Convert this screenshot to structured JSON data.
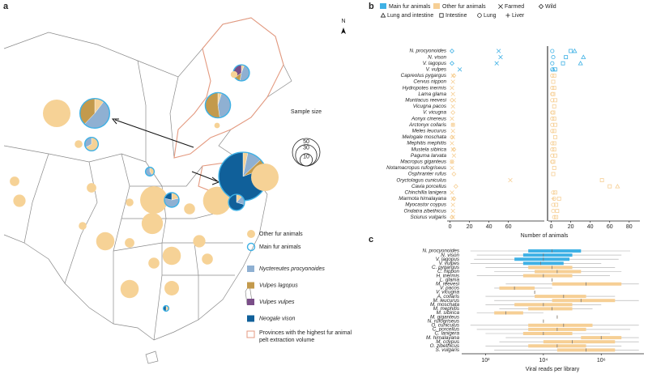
{
  "chart_data": [
    {
      "type": "pie-map",
      "panel_label": "a",
      "compass": "N",
      "size_title": "Sample size",
      "size_ticks": [
        10,
        30,
        50
      ],
      "main_label": "Main fur animals",
      "main_color": "#3fb1e5",
      "province_label": "Provinces with the highest fur animal pelt extraction volume",
      "province_color": "#e49a80",
      "series": [
        {
          "name": "Other fur animals",
          "color": "#f6d296"
        },
        {
          "name": "Nyctereutes procyonoides",
          "color": "#8fb0d2"
        },
        {
          "name": "Vulpes lagopus",
          "color": "#c39a4c"
        },
        {
          "name": "Vulpes vulpes",
          "color": "#7a4e88"
        },
        {
          "name": "Neogale vison",
          "color": "#10609a"
        }
      ],
      "pies": [
        [
          50,
          0,
          0,
          0,
          0
        ],
        [
          6,
          30,
          22,
          0,
          0
        ],
        [
          4,
          0,
          0,
          0,
          0
        ],
        [
          8,
          4,
          0,
          0,
          0
        ],
        [
          2,
          18,
          22,
          0,
          0
        ],
        [
          1,
          8,
          2,
          6,
          0
        ],
        [
          3,
          0,
          0,
          0,
          0
        ],
        [
          2,
          0,
          0,
          0,
          0
        ],
        [
          6,
          0,
          0,
          0,
          0
        ],
        [
          6,
          0,
          0,
          0,
          0
        ],
        [
          2,
          3,
          0,
          0,
          0
        ],
        [
          50,
          0,
          0,
          0,
          0
        ],
        [
          3,
          8,
          0,
          0,
          3
        ],
        [
          52,
          0,
          0,
          0,
          0
        ],
        [
          5,
          15,
          10,
          0,
          125
        ],
        [
          50,
          0,
          0,
          0,
          0
        ],
        [
          2,
          3,
          0,
          0,
          12
        ],
        [
          4,
          0,
          0,
          0,
          0
        ],
        [
          30,
          0,
          0,
          0,
          0
        ],
        [
          8,
          0,
          0,
          0,
          0
        ],
        [
          22,
          0,
          0,
          0,
          0
        ],
        [
          6,
          0,
          0,
          0,
          0
        ],
        [
          22,
          0,
          0,
          0,
          0
        ],
        [
          10,
          0,
          0,
          0,
          0
        ],
        [
          8,
          0,
          0,
          0,
          0
        ],
        [
          8,
          0,
          0,
          0,
          0
        ],
        [
          22,
          0,
          0,
          0,
          0
        ],
        [
          14,
          0,
          0,
          0,
          0
        ],
        [
          1,
          0,
          0,
          0,
          1
        ],
        [
          4,
          0,
          0,
          0,
          0
        ],
        [
          10,
          0,
          0,
          0,
          0
        ]
      ]
    },
    {
      "type": "dot",
      "panel_label": "b",
      "x_label": "Number of animals",
      "legend": [
        {
          "name": "Main fur animals",
          "color": "#3fb1e5"
        },
        {
          "name": "Other fur animals",
          "color": "#f6cf95"
        }
      ],
      "categories": [
        "N. procyonoides",
        "N. vison",
        "V. lagopus",
        "V. vulpes",
        "Capreolus pygargus",
        "Cervus nippon",
        "Hydropotes inermis",
        "Lama glama",
        "Muntiacus reevesi",
        "Vicugna pacos",
        "V. vicugna",
        "Aonyx cinereus",
        "Arctonyx collaris",
        "Meles leucurus",
        "Melogale moschata",
        "Mephitis mephitis",
        "Mustela sibirica",
        "Paguma larvata",
        "Macropus giganteus",
        "Notamacropus rufogriseus",
        "Osphranter rufus",
        "Oryctolagus cuniculus",
        "Cavia porcellus",
        "Chinchilla lanigera",
        "Marmota himalayana",
        "Myocastor coypus",
        "Ondatra zibethicus",
        "Sciurus vulgaris"
      ],
      "colors": [
        "#3fb1e5",
        "#3fb1e5",
        "#3fb1e5",
        "#3fb1e5",
        "#f6cf95",
        "#f6cf95",
        "#f6cf95",
        "#f6cf95",
        "#f6cf95",
        "#f6cf95",
        "#f6cf95",
        "#f6cf95",
        "#f6cf95",
        "#f6cf95",
        "#f6cf95",
        "#f6cf95",
        "#f6cf95",
        "#f6cf95",
        "#f6cf95",
        "#f6cf95",
        "#f6cf95",
        "#f6cf95",
        "#f6cf95",
        "#f6cf95",
        "#f6cf95",
        "#f6cf95",
        "#f6cf95",
        "#f6cf95"
      ],
      "facets": [
        {
          "xlim": [
            -3,
            97
          ],
          "xticks": [
            0,
            20,
            40,
            60
          ],
          "series": [
            {
              "name": "Farmed",
              "marker": "x",
              "values": [
                50,
                52,
                48,
                10,
                3,
                3,
                2,
                3,
                4,
                3,
                null,
                2,
                3,
                3,
                3,
                2,
                3,
                4,
                2,
                2,
                null,
                62,
                null,
                2,
                3,
                3,
                3,
                3
              ]
            },
            {
              "name": "Wild",
              "marker": "diamond",
              "values": [
                2,
                null,
                2,
                null,
                4,
                null,
                null,
                null,
                2,
                null,
                3,
                null,
                3,
                null,
                2,
                null,
                4,
                null,
                2,
                null,
                4,
                null,
                6,
                null,
                4,
                null,
                null,
                2
              ]
            }
          ]
        },
        {
          "xlim": [
            -3,
            91
          ],
          "xticks": [
            0,
            20,
            40,
            60,
            80
          ],
          "series": [
            {
              "name": "Lung and intestine",
              "marker": "triangle",
              "values": [
                24,
                33,
                30,
                2,
                null,
                null,
                null,
                null,
                null,
                null,
                null,
                null,
                null,
                null,
                null,
                null,
                null,
                null,
                null,
                null,
                null,
                null,
                68,
                null,
                null,
                null,
                null,
                null
              ]
            },
            {
              "name": "Intestine",
              "marker": "square",
              "values": [
                20,
                15,
                12,
                4,
                3,
                2,
                3,
                2,
                4,
                3,
                2,
                3,
                4,
                3,
                4,
                3,
                3,
                4,
                2,
                3,
                2,
                52,
                60,
                4,
                8,
                5,
                6,
                5
              ]
            },
            {
              "name": "Lung",
              "marker": "circle",
              "values": [
                1,
                2,
                1,
                1,
                1,
                null,
                1,
                1,
                1,
                null,
                1,
                1,
                1,
                1,
                null,
                1,
                1,
                1,
                1,
                null,
                null,
                null,
                null,
                2,
                3,
                2,
                2,
                3
              ]
            },
            {
              "name": "Liver",
              "marker": "plus",
              "values": [
                null,
                null,
                null,
                null,
                null,
                null,
                null,
                null,
                null,
                null,
                null,
                null,
                null,
                null,
                null,
                null,
                null,
                null,
                null,
                null,
                null,
                null,
                null,
                null,
                2,
                null,
                null,
                null
              ]
            }
          ]
        }
      ]
    },
    {
      "type": "box",
      "panel_label": "c",
      "x_label": "Viral reads per library",
      "log_x": true,
      "xlim": [
        15,
        30000000
      ],
      "xticks": [
        {
          "value": 100,
          "label": "10²"
        },
        {
          "value": 10000,
          "label": "10⁴"
        },
        {
          "value": 1000000,
          "label": "10⁶"
        }
      ],
      "categories": [
        "N. procyonoides",
        "N. vison",
        "V. lagopus",
        "V. vulpes",
        "C. pygargus",
        "C. nippon",
        "H. inermis",
        "L. glama",
        "M. reevesi",
        "V. pacos",
        "V. vicugna",
        "A. collaris",
        "M. leucurus",
        "M. moschata",
        "M. mephitis",
        "M. sibirica",
        "M. giganteus",
        "N. rufogriseus",
        "O. cuniculus",
        "C. porcellus",
        "C. lanigera",
        "M. himalayana",
        "M. coypus",
        "O. zibethicus",
        "S. vulgaris"
      ],
      "colors": [
        "#3fb1e5",
        "#3fb1e5",
        "#3fb1e5",
        "#3fb1e5",
        "#f6cf95",
        "#f6cf95",
        "#f6cf95",
        "#f6cf95",
        "#f6cf95",
        "#f6cf95",
        "#f6cf95",
        "#f6cf95",
        "#f6cf95",
        "#f6cf95",
        "#f6cf95",
        "#f6cf95",
        "#f6cf95",
        "#f6cf95",
        "#f6cf95",
        "#f6cf95",
        "#f6cf95",
        "#f6cf95",
        "#f6cf95",
        "#f6cf95",
        "#f6cf95"
      ],
      "min": [
        30,
        50,
        40,
        30,
        100,
        200,
        50,
        20000,
        500,
        200,
        5000,
        100,
        200,
        100,
        300,
        50,
        30000,
        10000,
        30,
        50,
        100,
        500,
        300,
        100,
        200
      ],
      "q1": [
        3000,
        2000,
        1000,
        2000,
        3000,
        5000,
        2000,
        20000,
        20000,
        300,
        5000,
        5000,
        20000,
        1000,
        3000,
        200,
        30000,
        10000,
        3000,
        3000,
        2000,
        200000,
        10000,
        3000,
        30000
      ],
      "median": [
        20000,
        10000,
        10000,
        8000,
        20000,
        30000,
        10000,
        20000,
        300000,
        1000,
        5000,
        50000,
        200000,
        10000,
        20000,
        500,
        30000,
        10000,
        50000,
        30000,
        10000,
        1000000,
        100000,
        30000,
        300000
      ],
      "q3": [
        200000,
        100000,
        80000,
        50000,
        100000,
        200000,
        100000,
        20000,
        5000000,
        5000,
        5000,
        300000,
        3000000,
        100000,
        100000,
        2000,
        30000,
        10000,
        500000,
        300000,
        100000,
        5000000,
        3000000,
        300000,
        3000000
      ],
      "max": [
        10000000,
        5000000,
        4000000,
        1000000,
        3000000,
        5000000,
        2000000,
        20000,
        20000000,
        20000,
        5000,
        3000000,
        20000000,
        1000000,
        500000,
        10000,
        30000,
        10000,
        20000000,
        10000000,
        2000000,
        20000000,
        20000000,
        5000000,
        20000000
      ]
    }
  ]
}
